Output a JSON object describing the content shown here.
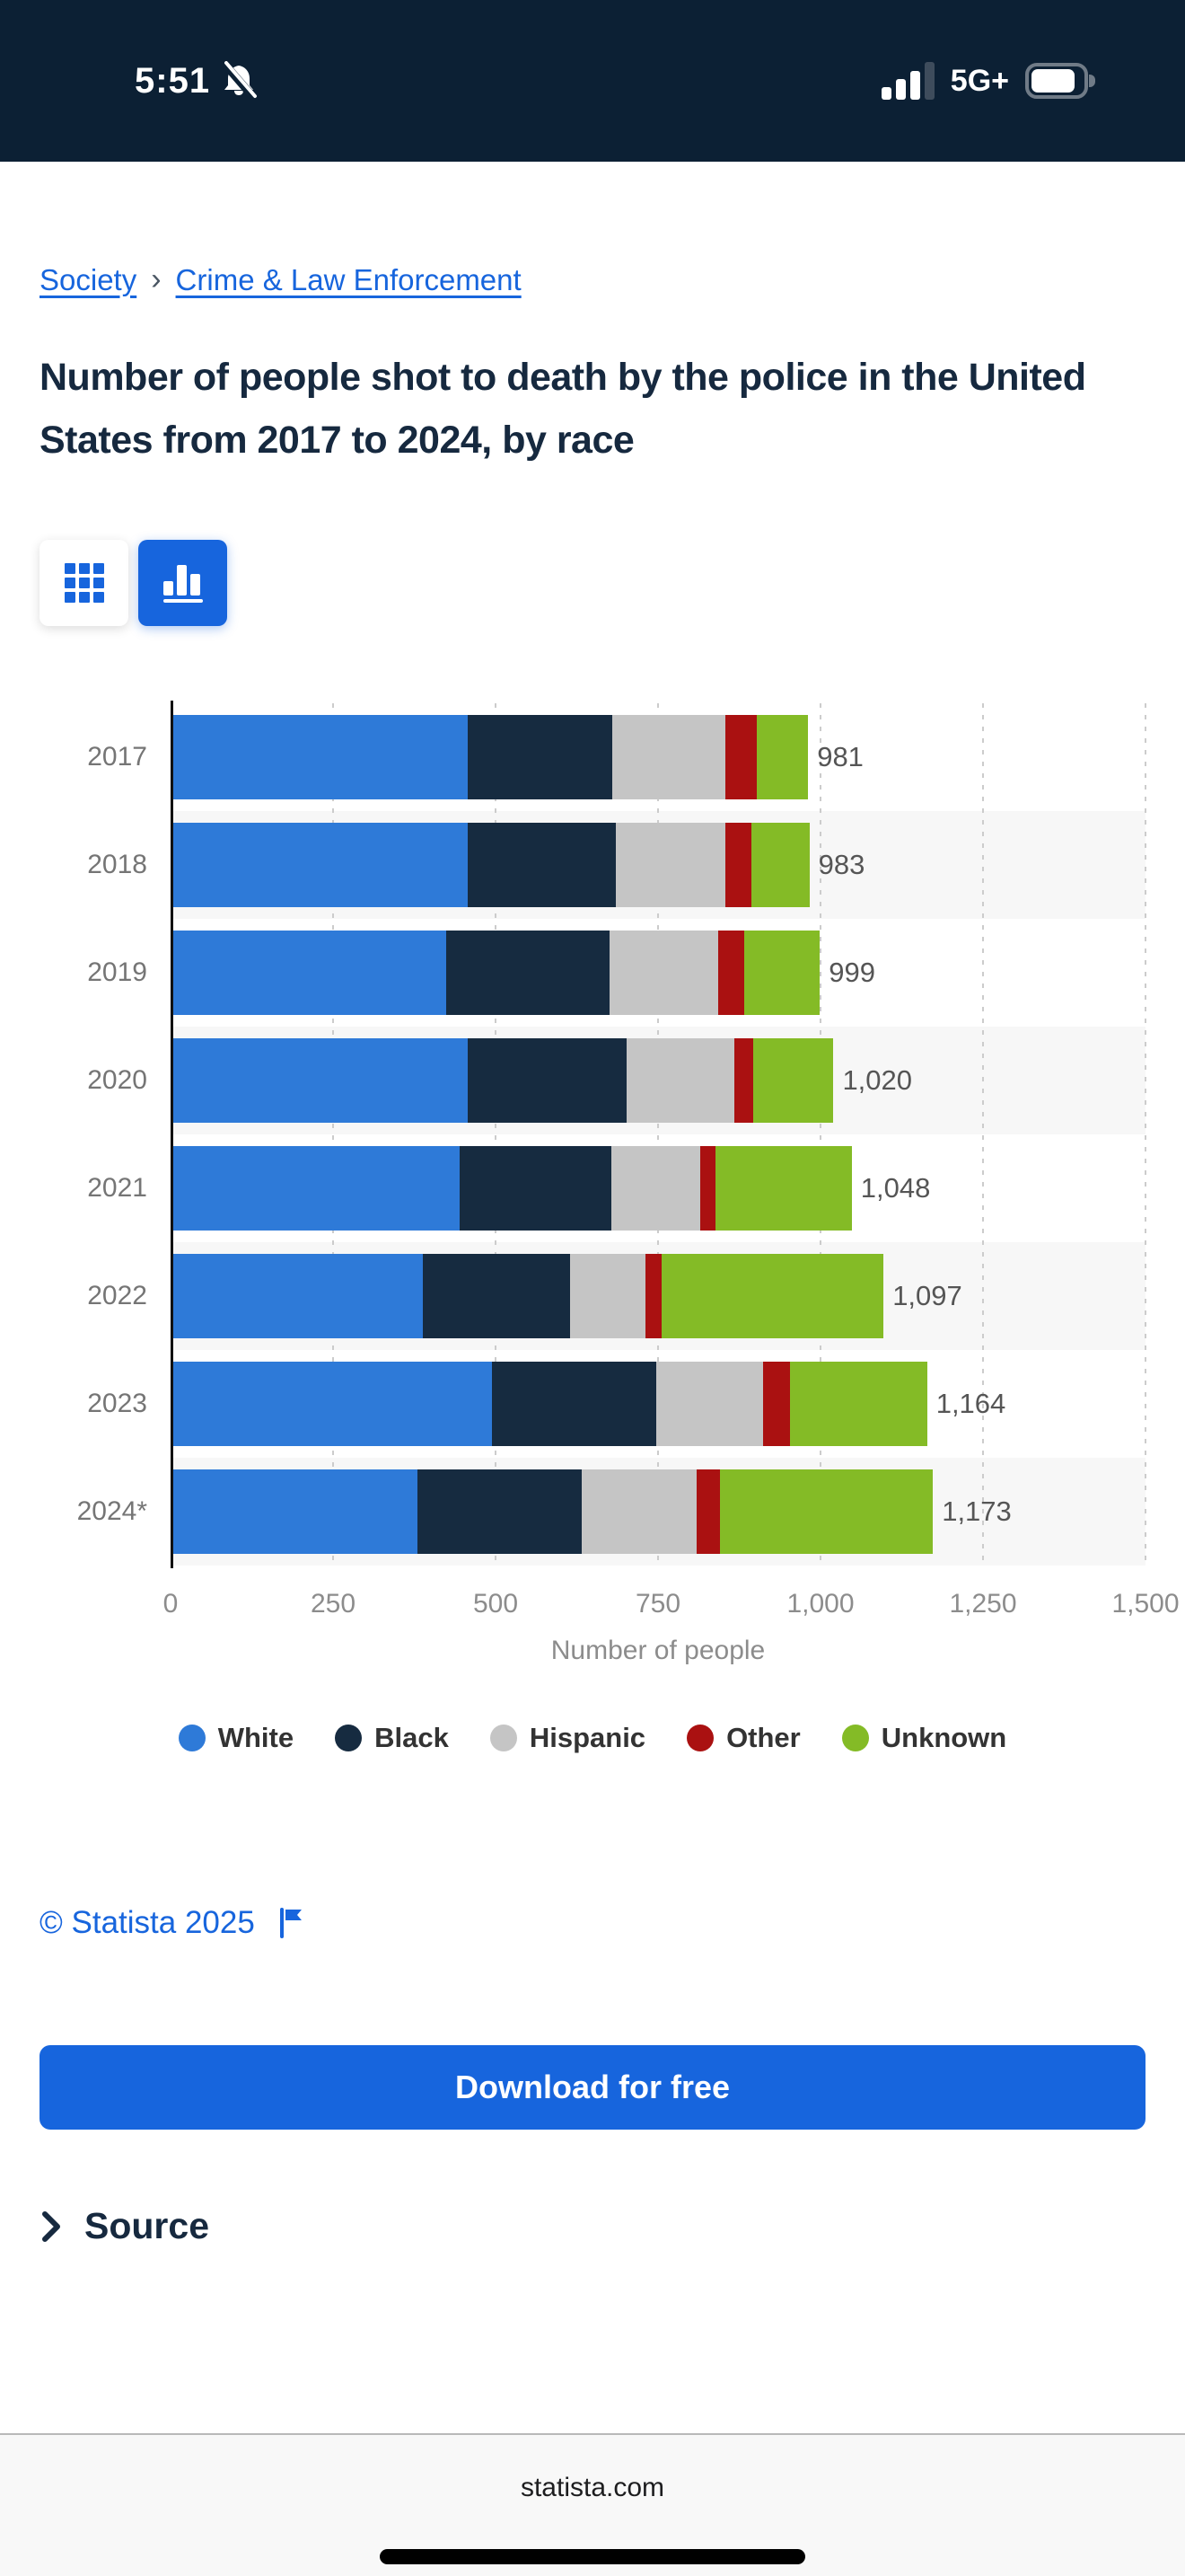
{
  "status_bar": {
    "time": "5:51",
    "network": "5G+",
    "battery_level": 0.72,
    "icons": [
      "bell-muted-icon",
      "signal-icon",
      "battery-icon"
    ]
  },
  "breadcrumb": {
    "items": [
      "Society",
      "Crime & Law Enforcement"
    ],
    "separator": "›"
  },
  "title": "Number of people shot to death by the police in the United States from 2017 to 2024, by race",
  "toolbar": {
    "buttons": [
      {
        "name": "table-view",
        "icon": "grid-icon",
        "active": false
      },
      {
        "name": "chart-view",
        "icon": "bar-chart-icon",
        "active": true
      }
    ]
  },
  "chart_data": {
    "type": "bar",
    "orientation": "horizontal",
    "stacked": true,
    "values_estimated_from_pixels": true,
    "categories": [
      "2017",
      "2018",
      "2019",
      "2020",
      "2021",
      "2022",
      "2023",
      "2024*"
    ],
    "series": [
      {
        "name": "White",
        "color": "#2E7AD8",
        "values": [
          457,
          457,
          424,
          457,
          445,
          388,
          495,
          380
        ]
      },
      {
        "name": "Black",
        "color": "#162B40",
        "values": [
          222,
          228,
          251,
          245,
          233,
          227,
          252,
          252
        ]
      },
      {
        "name": "Hispanic",
        "color": "#C5C5C5",
        "values": [
          175,
          169,
          167,
          166,
          137,
          115,
          164,
          177
        ]
      },
      {
        "name": "Other",
        "color": "#AA1111",
        "values": [
          48,
          40,
          41,
          29,
          24,
          26,
          42,
          37
        ]
      },
      {
        "name": "Unknown",
        "color": "#84BB26",
        "values": [
          79,
          89,
          116,
          123,
          209,
          341,
          211,
          327
        ]
      }
    ],
    "totals": [
      981,
      983,
      999,
      1020,
      1048,
      1097,
      1164,
      1173
    ],
    "total_labels": [
      "981",
      "983",
      "999",
      "1,020",
      "1,048",
      "1,097",
      "1,164",
      "1,173"
    ],
    "xlabel": "Number of people",
    "xlim": [
      0,
      1500
    ],
    "x_tick_values": [
      0,
      250,
      500,
      750,
      1000,
      1250,
      1500
    ],
    "x_tick_labels": [
      "0",
      "250",
      "500",
      "750",
      "1,000",
      "1,250",
      "1,500"
    ],
    "grid": "vertical-dotted",
    "zebra_rows": "even-index-striped",
    "legend_position": "bottom"
  },
  "copyright": {
    "text": "© Statista 2025",
    "flag_icon": "flag-icon"
  },
  "download_button": {
    "label": "Download for free"
  },
  "source_section": {
    "label": "Source",
    "chevron_icon": "chevron-right-icon"
  },
  "browser_bar": {
    "url": "statista.com"
  },
  "colors": {
    "accent_blue": "#1765DD",
    "title_navy": "#16293F",
    "status_bar_bg": "#0C2034",
    "stripe": "#F7F7F7",
    "axis_text": "#8C8C8C",
    "year_text": "#757575",
    "total_text": "#555555",
    "legend_text": "#333333"
  }
}
